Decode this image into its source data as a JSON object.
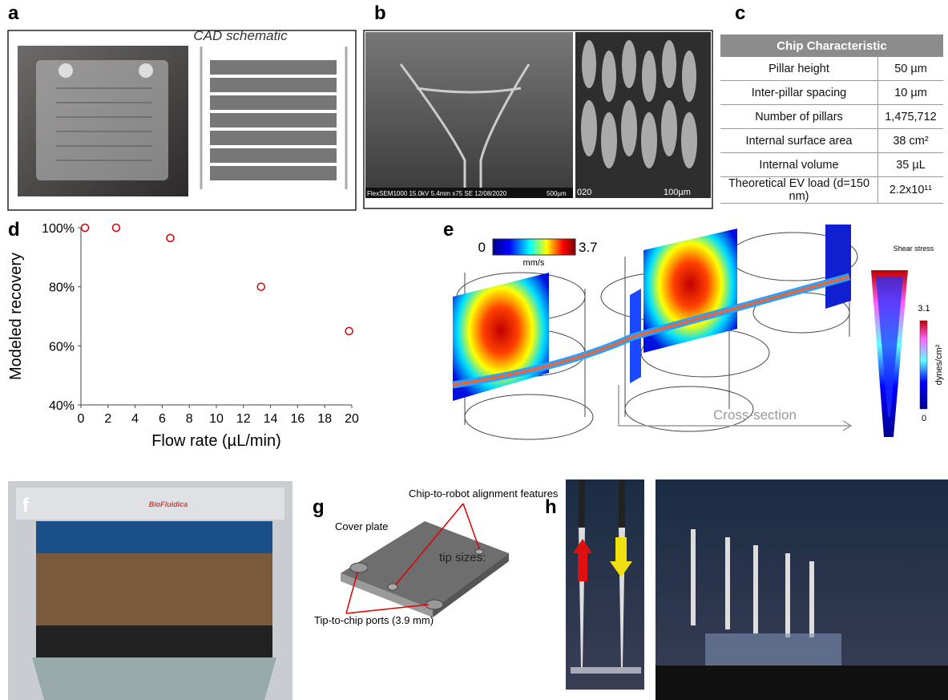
{
  "panels": {
    "a": {
      "label": "a",
      "caption": "CAD schematic"
    },
    "b": {
      "label": "b",
      "sem_info": "FlexSEM1000 15.0kV 5.4mm x75 SE 12/08/2020",
      "scale_left": "500µm",
      "id_right": "020",
      "scale_right": "100µm"
    },
    "c": {
      "label": "c",
      "table": {
        "header": "Chip Characteristic",
        "rows": [
          {
            "label": "Pillar height",
            "value": "50 µm"
          },
          {
            "label": "Inter-pillar spacing",
            "value": "10 µm"
          },
          {
            "label": "Number of pillars",
            "value": "1,475,712"
          },
          {
            "label": "Internal surface area",
            "value": "38 cm²"
          },
          {
            "label": "Internal volume",
            "value": "35 µL"
          },
          {
            "label": "Theoretical EV load (d=150 nm)",
            "value": "2.2x10¹¹"
          }
        ]
      }
    },
    "d": {
      "label": "d"
    },
    "e": {
      "label": "e",
      "velocity_min": "0",
      "velocity_max": "3.7",
      "velocity_unit": "mm/s",
      "shear_title": "Shear stress",
      "shear_max": "3.1",
      "shear_unit": "dynes/cm²",
      "shear_min": "0",
      "cross_section": "Cross-section"
    },
    "f": {
      "label": "f",
      "brand": "BioFluidica"
    },
    "g": {
      "label": "g",
      "cover_plate": "Cover plate",
      "alignment": "Chip-to-robot alignment features",
      "tip_sizes": "tip sizes:",
      "ports": "Tip-to-chip ports (3.9 mm)"
    },
    "h": {
      "label": "h"
    }
  },
  "chart_data": {
    "type": "scatter",
    "x": [
      0.3,
      2.6,
      6.6,
      13.3,
      19.8
    ],
    "values": [
      100,
      100,
      96.5,
      80,
      65
    ],
    "color": "#d00000",
    "xlabel": "Flow rate (µL/min)",
    "ylabel": "Modeled recovery",
    "xlim": [
      0,
      20
    ],
    "xticks": [
      0,
      2,
      4,
      6,
      8,
      10,
      12,
      14,
      16,
      18,
      20
    ],
    "ylim": [
      40,
      100
    ],
    "yticks": [
      {
        "value": 40,
        "label": "40%"
      },
      {
        "value": 60,
        "label": "60%"
      },
      {
        "value": 80,
        "label": "80%"
      },
      {
        "value": 100,
        "label": "100%"
      }
    ]
  }
}
